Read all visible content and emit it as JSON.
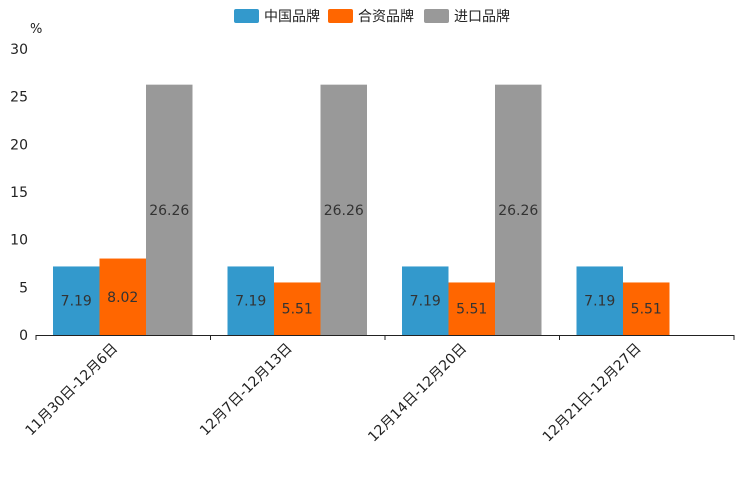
{
  "chart_data": {
    "type": "bar",
    "title": "",
    "unit_label": "%",
    "xlabel": "",
    "ylabel": "%",
    "ylim": [
      0,
      30
    ],
    "yticks": [
      0,
      5,
      10,
      15,
      20,
      25,
      30
    ],
    "categories": [
      "11月30日-12月6日",
      "12月7日-12月13日",
      "12月14日-12月20日",
      "12月21日-12月27日"
    ],
    "series": [
      {
        "name": "中国品牌",
        "color": "#3399cc",
        "values": [
          7.19,
          7.19,
          7.19,
          7.19
        ]
      },
      {
        "name": "合资品牌",
        "color": "#ff6600",
        "values": [
          8.02,
          5.51,
          5.51,
          5.51
        ]
      },
      {
        "name": "进口品牌",
        "color": "#999999",
        "values": [
          26.26,
          26.26,
          26.26,
          null
        ]
      }
    ],
    "legend_position": "top-center",
    "grid": false
  }
}
